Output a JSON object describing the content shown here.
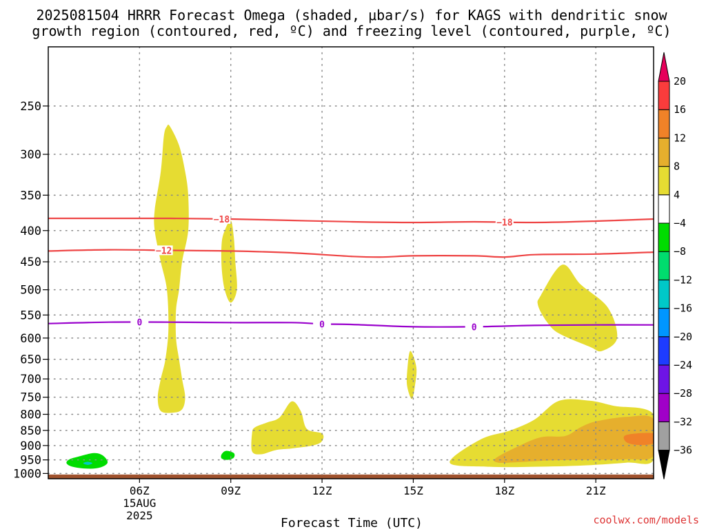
{
  "chart_data": {
    "type": "heatmap",
    "title_line1": "2025081504 HRRR Forecast Omega (shaded, μbar/s) for KAGS with dendritic snow",
    "title_line2": "growth region (contoured, red, ºC) and freezing level (contoured, purple, ºC)",
    "xlabel": "Forecast Time (UTC)",
    "ylabel": "",
    "credit": "coolwx.com/models",
    "x_ticks": [
      {
        "hour_utc": 6,
        "label": "06Z"
      },
      {
        "hour_utc": 9,
        "label": "09Z"
      },
      {
        "hour_utc": 12,
        "label": "12Z"
      },
      {
        "hour_utc": 15,
        "label": "15Z"
      },
      {
        "hour_utc": 18,
        "label": "18Z"
      },
      {
        "hour_utc": 21,
        "label": "21Z"
      }
    ],
    "date_label": {
      "hour_utc": 6,
      "lines": [
        "15AUG",
        "2025"
      ]
    },
    "xlim": [
      3,
      22.9
    ],
    "y_ticks": [
      250,
      300,
      350,
      400,
      450,
      500,
      550,
      600,
      650,
      700,
      750,
      800,
      850,
      900,
      950,
      1000
    ],
    "ylim": [
      1020,
      200
    ],
    "y_scale": "log-pressure",
    "colorbar": {
      "levels": [
        -36,
        -32,
        -28,
        -24,
        -20,
        -16,
        -12,
        -8,
        -4,
        4,
        8,
        12,
        16,
        20
      ],
      "colors": [
        "#000000",
        "#a0a0a0",
        "#a000c8",
        "#6e14e6",
        "#1e3cff",
        "#0096ff",
        "#00c8c8",
        "#00dc6e",
        "#00dc00",
        "#ffffff",
        "#e6dc32",
        "#e6af2d",
        "#f08228",
        "#fa3c3c",
        "#e6005a"
      ]
    },
    "temperature_contours": [
      {
        "value": -18,
        "color": "#ee4444",
        "labels_at_hour": [
          8.7,
          18
        ],
        "points": [
          [
            3.0,
            382
          ],
          [
            5,
            382
          ],
          [
            7,
            382
          ],
          [
            9,
            383
          ],
          [
            11,
            385
          ],
          [
            13,
            387
          ],
          [
            15,
            388
          ],
          [
            17,
            387
          ],
          [
            19,
            388
          ],
          [
            21,
            386
          ],
          [
            22.9,
            383
          ]
        ]
      },
      {
        "value": -12,
        "color": "#ee4444",
        "labels_at_hour": [
          6.8
        ],
        "points": [
          [
            3.0,
            432
          ],
          [
            5,
            430
          ],
          [
            7,
            431
          ],
          [
            9,
            432
          ],
          [
            11,
            435
          ],
          [
            13,
            441
          ],
          [
            14,
            442
          ],
          [
            15,
            440
          ],
          [
            17,
            440
          ],
          [
            18,
            442
          ],
          [
            19,
            438
          ],
          [
            21,
            437
          ],
          [
            22.9,
            434
          ]
        ]
      },
      {
        "value": 0,
        "color": "#9900cc",
        "labels_at_hour": [
          6,
          12,
          17
        ],
        "points": [
          [
            3.0,
            568
          ],
          [
            5,
            565
          ],
          [
            7,
            565
          ],
          [
            9,
            566
          ],
          [
            11,
            566
          ],
          [
            12,
            569
          ],
          [
            13,
            570
          ],
          [
            15,
            575
          ],
          [
            17,
            575
          ],
          [
            19,
            572
          ],
          [
            21,
            571
          ],
          [
            22.9,
            571
          ]
        ]
      }
    ],
    "omega_regions": [
      {
        "level": "4 to 8",
        "color": "#e6dc32",
        "points": [
          [
            7.0,
            270
          ],
          [
            7.3,
            290
          ],
          [
            7.5,
            320
          ],
          [
            7.6,
            350
          ],
          [
            7.6,
            400
          ],
          [
            7.4,
            450
          ],
          [
            7.3,
            500
          ],
          [
            7.2,
            540
          ],
          [
            7.2,
            600
          ],
          [
            7.3,
            650
          ],
          [
            7.4,
            700
          ],
          [
            7.5,
            750
          ],
          [
            7.4,
            785
          ],
          [
            7.1,
            795
          ],
          [
            6.7,
            790
          ],
          [
            6.6,
            750
          ],
          [
            6.7,
            700
          ],
          [
            6.85,
            650
          ],
          [
            6.95,
            580
          ],
          [
            6.9,
            500
          ],
          [
            6.7,
            450
          ],
          [
            6.5,
            400
          ],
          [
            6.5,
            370
          ],
          [
            6.7,
            320
          ],
          [
            6.8,
            280
          ],
          [
            6.9,
            270
          ]
        ]
      },
      {
        "level": "4 to 8",
        "color": "#e6dc32",
        "points": [
          [
            9.0,
            385
          ],
          [
            9.1,
            410
          ],
          [
            9.15,
            450
          ],
          [
            9.2,
            500
          ],
          [
            9.0,
            525
          ],
          [
            8.8,
            500
          ],
          [
            8.7,
            460
          ],
          [
            8.7,
            420
          ],
          [
            8.8,
            400
          ]
        ]
      },
      {
        "level": "4 to 8",
        "color": "#e6dc32",
        "points": [
          [
            11.0,
            762
          ],
          [
            11.3,
            790
          ],
          [
            11.5,
            845
          ],
          [
            12.0,
            860
          ],
          [
            12.0,
            885
          ],
          [
            11.7,
            900
          ],
          [
            11.0,
            910
          ],
          [
            10.5,
            915
          ],
          [
            10.0,
            930
          ],
          [
            9.7,
            920
          ],
          [
            9.7,
            860
          ],
          [
            9.8,
            840
          ],
          [
            10.2,
            825
          ],
          [
            10.6,
            810
          ]
        ]
      },
      {
        "level": "4 to 8",
        "color": "#e6dc32",
        "points": [
          [
            14.9,
            630
          ],
          [
            15.1,
            670
          ],
          [
            15.05,
            720
          ],
          [
            14.95,
            755
          ],
          [
            14.8,
            720
          ],
          [
            14.8,
            680
          ]
        ]
      },
      {
        "level": "4 to 8",
        "color": "#e6dc32",
        "points": [
          [
            19.9,
            455
          ],
          [
            20.5,
            490
          ],
          [
            21.4,
            535
          ],
          [
            21.7,
            600
          ],
          [
            21.2,
            630
          ],
          [
            20.8,
            620
          ],
          [
            19.8,
            590
          ],
          [
            19.4,
            565
          ],
          [
            19.1,
            530
          ],
          [
            19.2,
            510
          ]
        ]
      },
      {
        "level": "4 to 8",
        "color": "#e6dc32",
        "points": [
          [
            16.2,
            960
          ],
          [
            17.2,
            880
          ],
          [
            18.2,
            850
          ],
          [
            19.0,
            815
          ],
          [
            19.8,
            760
          ],
          [
            20.8,
            760
          ],
          [
            21.6,
            775
          ],
          [
            22.9,
            800
          ],
          [
            22.9,
            950
          ],
          [
            22.0,
            960
          ],
          [
            20.6,
            970
          ],
          [
            19.0,
            975
          ],
          [
            17.5,
            975
          ]
        ]
      },
      {
        "level": "8 to 12",
        "color": "#e6af2d",
        "points": [
          [
            17.7,
            945
          ],
          [
            18.4,
            905
          ],
          [
            19.2,
            872
          ],
          [
            20.0,
            868
          ],
          [
            20.5,
            840
          ],
          [
            21.0,
            822
          ],
          [
            22.0,
            808
          ],
          [
            22.9,
            815
          ],
          [
            22.9,
            935
          ],
          [
            22.0,
            948
          ],
          [
            20.5,
            950
          ],
          [
            19.5,
            952
          ],
          [
            18.5,
            958
          ],
          [
            17.8,
            960
          ]
        ]
      },
      {
        "level": "12 to 16",
        "color": "#f08228",
        "points": [
          [
            22.0,
            865
          ],
          [
            22.9,
            860
          ],
          [
            22.9,
            892
          ],
          [
            22.4,
            898
          ],
          [
            22.0,
            888
          ]
        ]
      },
      {
        "level": "-8 to -4",
        "color": "#00dc00",
        "points": [
          [
            4.5,
            926
          ],
          [
            4.8,
            935
          ],
          [
            4.95,
            960
          ],
          [
            4.7,
            978
          ],
          [
            4.3,
            982
          ],
          [
            3.8,
            975
          ],
          [
            3.6,
            962
          ],
          [
            3.7,
            948
          ],
          [
            4.0,
            938
          ]
        ]
      },
      {
        "level": "-8 to -4",
        "color": "#00dc00",
        "points": [
          [
            8.85,
            918
          ],
          [
            9.1,
            926
          ],
          [
            9.1,
            942
          ],
          [
            8.9,
            950
          ],
          [
            8.7,
            945
          ],
          [
            8.7,
            930
          ]
        ]
      },
      {
        "level": "-12 to -8",
        "color": "#00c8c8",
        "points": [
          [
            4.3,
            957
          ],
          [
            4.45,
            962
          ],
          [
            4.3,
            968
          ],
          [
            4.15,
            962
          ]
        ]
      }
    ],
    "surface_band": {
      "color": "#a0522d",
      "from_hpa": 1020,
      "to_hpa": 1004
    }
  }
}
